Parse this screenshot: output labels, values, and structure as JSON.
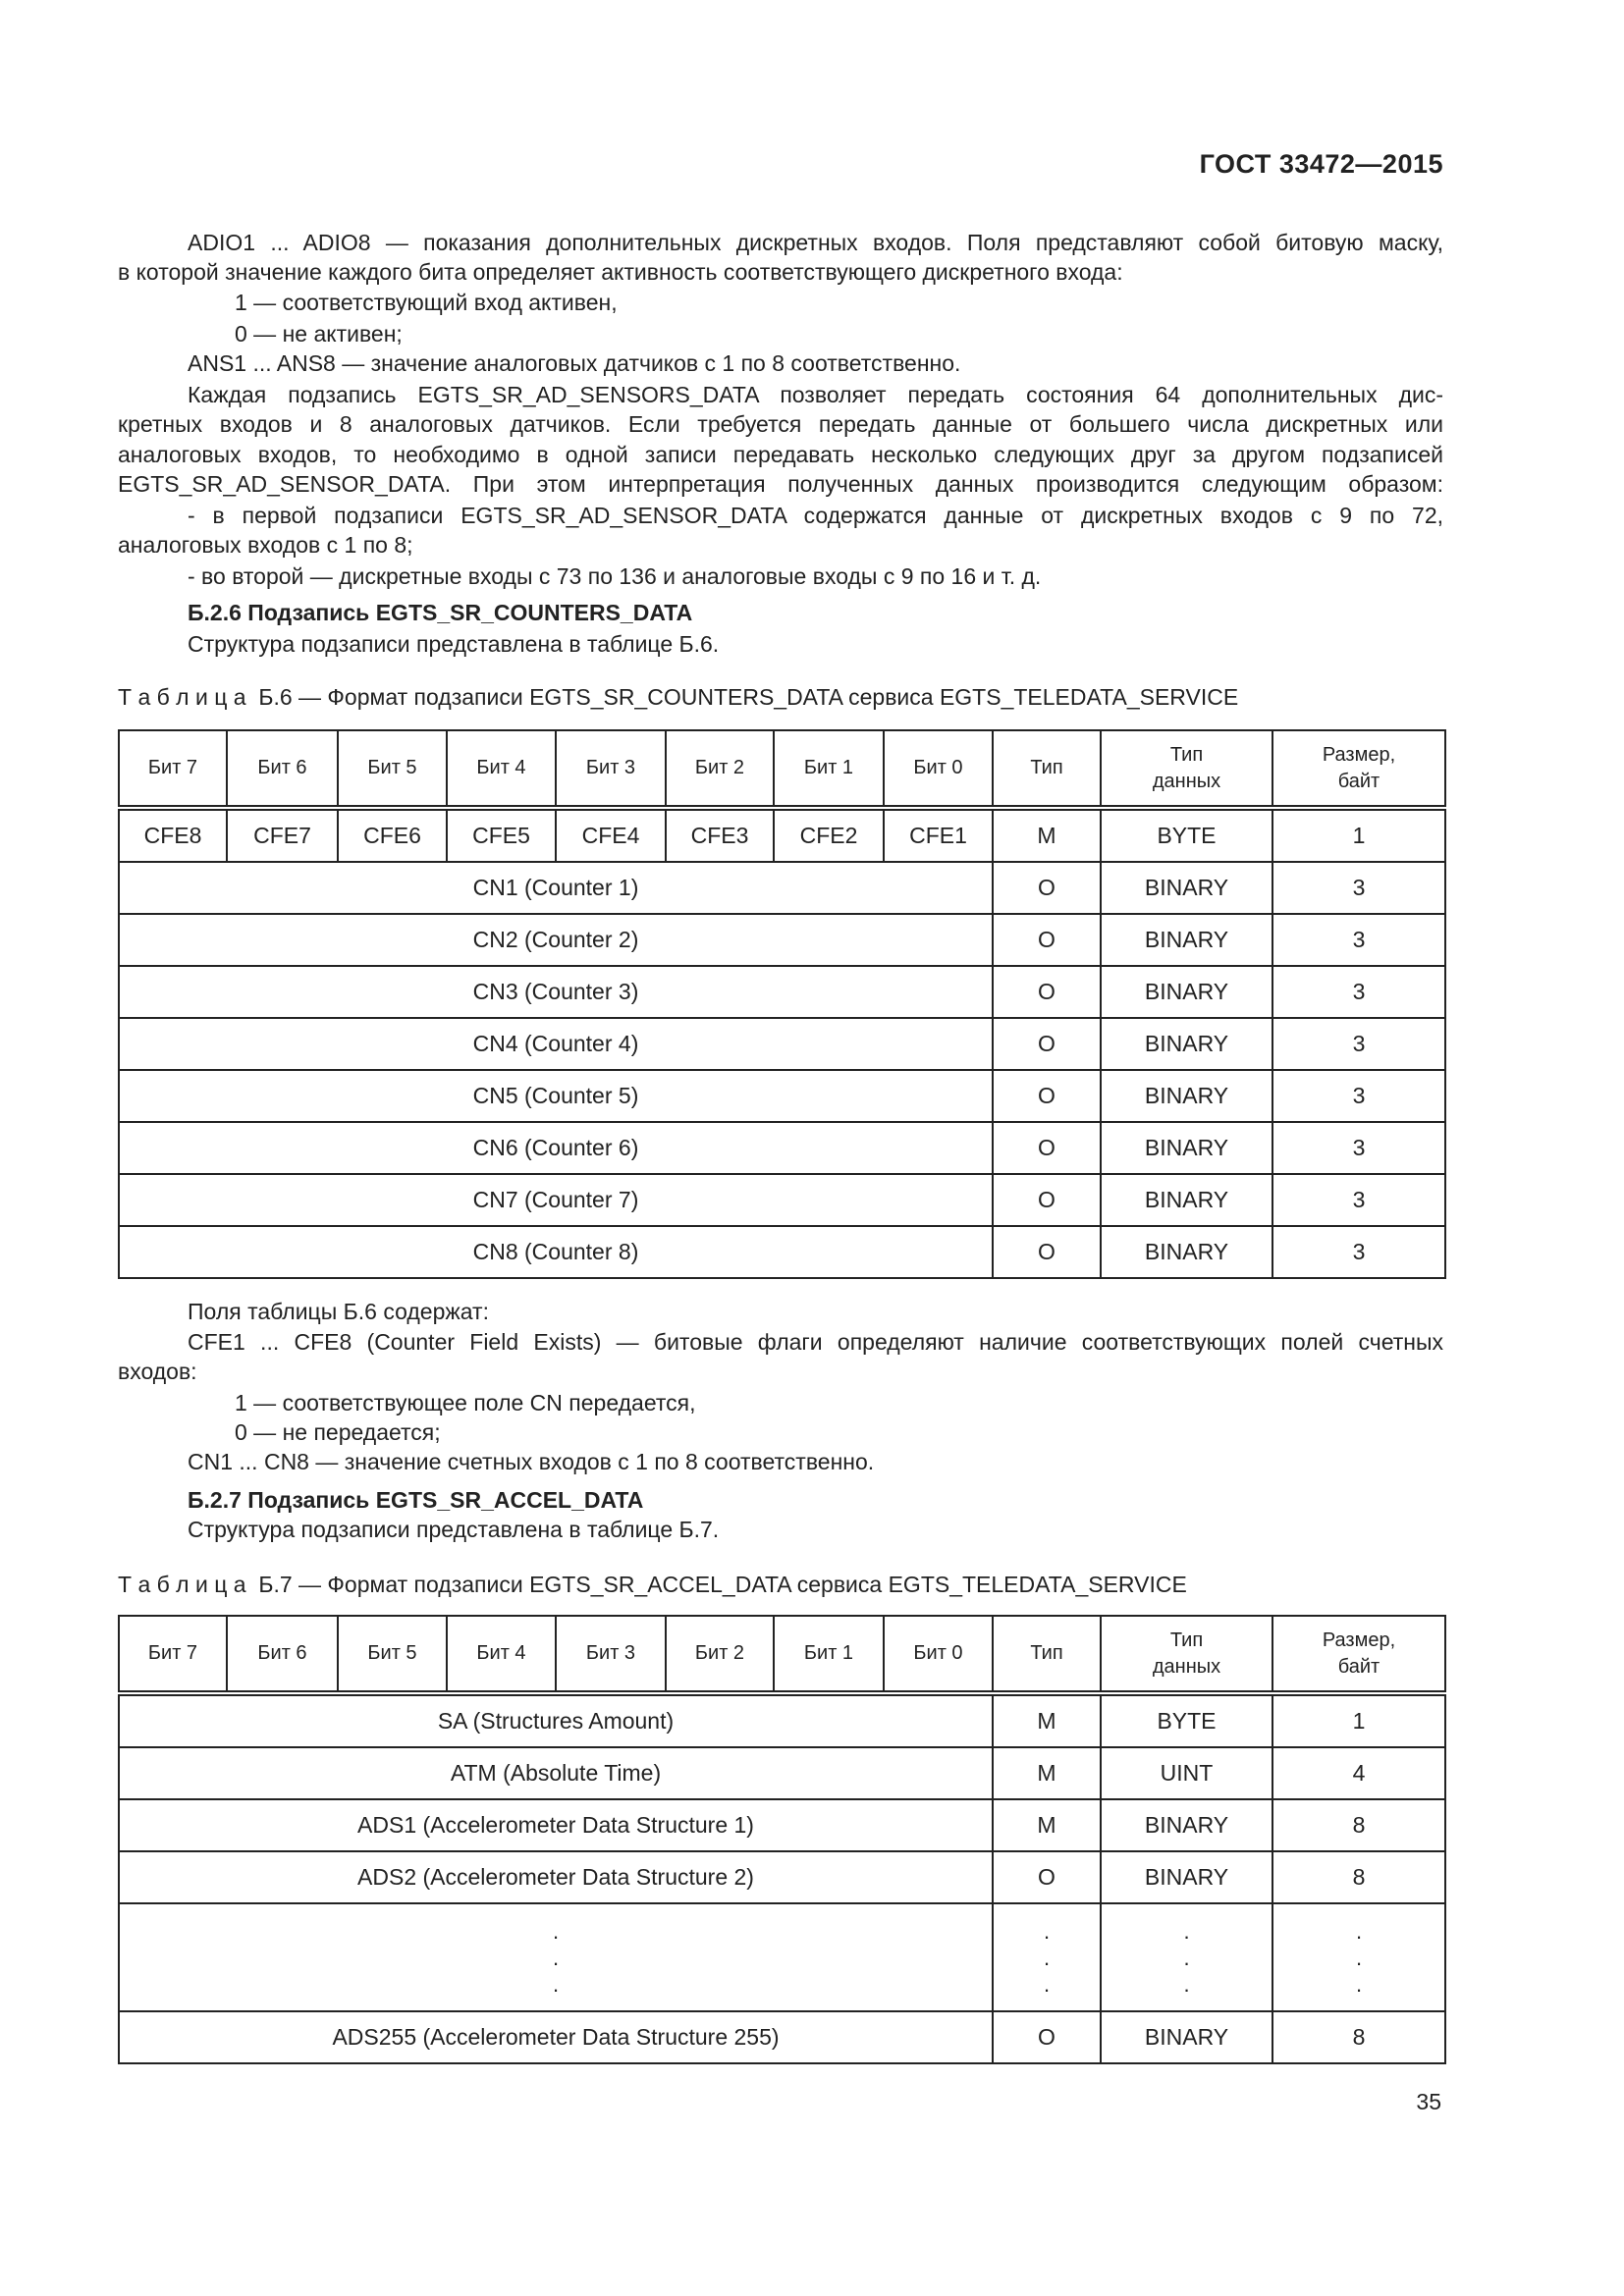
{
  "header": {
    "doc_id": "ГОСТ 33472—2015"
  },
  "text_top": [
    {
      "text": "ADIO1 ... ADIO8 — показания дополнительных дискретных входов. Поля представляют собой битовую маску,",
      "indent": 1,
      "justify": true
    },
    {
      "text": "в которой значение каждого бита определяет активность соответствующего дискретного входа:",
      "indent": 0
    },
    {
      "text": "1 — соответствующий вход активен,",
      "indent": 2
    },
    {
      "text": "0 — не активен;",
      "indent": 2
    },
    {
      "text": "ANS1 ... ANS8 — значение аналоговых датчиков с 1 по 8 соответственно.",
      "indent": 1
    },
    {
      "text": "Каждая подзапись EGTS_SR_AD_SENSORS_DATA позволяет передать состояния 64 дополнительных дис-",
      "indent": 1,
      "justify": true
    },
    {
      "text": "кретных входов и 8 аналоговых датчиков. Если требуется передать данные от большего числа дискретных или",
      "indent": 0,
      "justify": true
    },
    {
      "text": "аналоговых входов, то необходимо в одной записи передавать несколько следующих друг за другом подзаписей",
      "indent": 0,
      "justify": true
    },
    {
      "text": "EGTS_SR_AD_SENSOR_DATA. При этом интерпретация полученных данных производится следующим образом:",
      "indent": 0,
      "justify": true
    },
    {
      "text": "- в первой подзаписи EGTS_SR_AD_SENSOR_DATA содержатся данные от дискретных входов с 9 по 72,",
      "indent": 1,
      "justify": true
    },
    {
      "text": "аналоговых входов с 1 по 8;",
      "indent": 0
    },
    {
      "text": "- во второй — дискретные входы с 73 по 136 и аналоговые входы с 9 по 16 и т. д.",
      "indent": 1
    },
    {
      "text": "Б.2.6 Подзапись EGTS_SR_COUNTERS_DATA",
      "indent": 1,
      "bold": true
    },
    {
      "text": "Структура подзаписи представлена в таблице Б.6.",
      "indent": 1
    }
  ],
  "table6": {
    "caption_prefix": "Т а б л и ц а  Б.6",
    "caption": " — Формат подзаписи EGTS_SR_COUNTERS_DATA сервиса EGTS_TELEDATA_SERVICE",
    "headers": [
      "Бит 7",
      "Бит 6",
      "Бит 5",
      "Бит 4",
      "Бит 3",
      "Бит 2",
      "Бит 1",
      "Бит 0",
      "Тип",
      "Тип\nданных",
      "Размер,\nбайт"
    ],
    "flag_row": {
      "bits": [
        "CFE8",
        "CFE7",
        "CFE6",
        "CFE5",
        "CFE4",
        "CFE3",
        "CFE2",
        "CFE1"
      ],
      "type": "M",
      "data_type": "BYTE",
      "size": "1"
    },
    "rows": [
      {
        "field": "CN1 (Counter 1)",
        "type": "O",
        "data_type": "BINARY",
        "size": "3"
      },
      {
        "field": "CN2 (Counter 2)",
        "type": "O",
        "data_type": "BINARY",
        "size": "3"
      },
      {
        "field": "CN3 (Counter 3)",
        "type": "O",
        "data_type": "BINARY",
        "size": "3"
      },
      {
        "field": "CN4 (Counter 4)",
        "type": "O",
        "data_type": "BINARY",
        "size": "3"
      },
      {
        "field": "CN5 (Counter 5)",
        "type": "O",
        "data_type": "BINARY",
        "size": "3"
      },
      {
        "field": "CN6 (Counter 6)",
        "type": "O",
        "data_type": "BINARY",
        "size": "3"
      },
      {
        "field": "CN7 (Counter 7)",
        "type": "O",
        "data_type": "BINARY",
        "size": "3"
      },
      {
        "field": "CN8 (Counter 8)",
        "type": "O",
        "data_type": "BINARY",
        "size": "3"
      }
    ]
  },
  "text_mid": [
    {
      "text": "Поля таблицы Б.6 содержат:",
      "indent": 1
    },
    {
      "text": "CFE1 ... CFE8 (Counter Field Exists) — битовые флаги определяют наличие соответствующих полей счетных",
      "indent": 1,
      "justify": true
    },
    {
      "text": "входов:",
      "indent": 0
    },
    {
      "text": "1 — соответствующее поле CN передается,",
      "indent": 2
    },
    {
      "text": "0 — не передается;",
      "indent": 2
    },
    {
      "text": "CN1 ... CN8 — значение счетных входов с 1 по 8 соответственно.",
      "indent": 1
    },
    {
      "text": "Б.2.7 Подзапись EGTS_SR_ACCEL_DATA",
      "indent": 1,
      "bold": true
    },
    {
      "text": "Структура подзаписи представлена в таблице Б.7.",
      "indent": 1
    }
  ],
  "table7": {
    "caption_prefix": "Т а б л и ц а  Б.7",
    "caption": " — Формат подзаписи EGTS_SR_ACCEL_DATA сервиса EGTS_TELEDATA_SERVICE",
    "headers": [
      "Бит 7",
      "Бит 6",
      "Бит 5",
      "Бит 4",
      "Бит 3",
      "Бит 2",
      "Бит 1",
      "Бит 0",
      "Тип",
      "Тип\nданных",
      "Размер,\nбайт"
    ],
    "rows": [
      {
        "field": "SA (Structures Amount)",
        "type": "M",
        "data_type": "BYTE",
        "size": "1"
      },
      {
        "field": "ATM (Absolute Time)",
        "type": "M",
        "data_type": "UINT",
        "size": "4"
      },
      {
        "field": "ADS1 (Accelerometer Data Structure 1)",
        "type": "M",
        "data_type": "BINARY",
        "size": "8"
      },
      {
        "field": "ADS2 (Accelerometer Data Structure 2)",
        "type": "O",
        "data_type": "BINARY",
        "size": "8"
      },
      {
        "field": ".\n.\n.",
        "type": ".\n.\n.",
        "data_type": ".\n.\n.",
        "size": ".\n.\n.",
        "ellipsis": true
      },
      {
        "field": "ADS255 (Accelerometer Data Structure 255)",
        "type": "O",
        "data_type": "BINARY",
        "size": "8"
      }
    ]
  },
  "footer": {
    "page_number": "35"
  }
}
